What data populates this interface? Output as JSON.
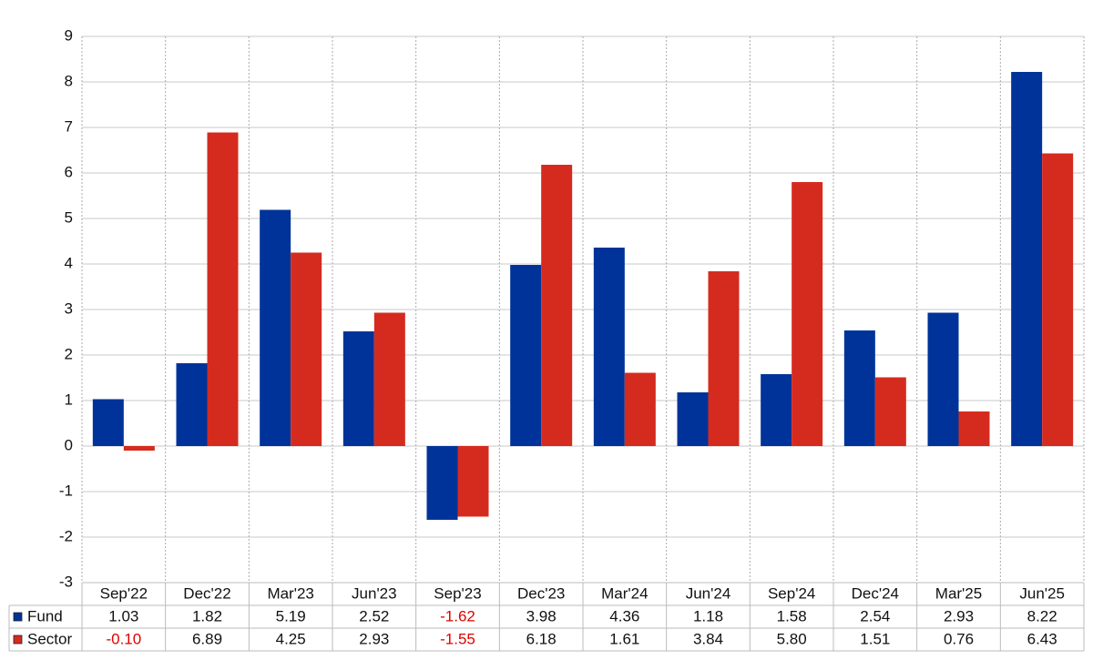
{
  "chart_data": {
    "type": "bar",
    "categories": [
      "Sep'22",
      "Dec'22",
      "Mar'23",
      "Jun'23",
      "Sep'23",
      "Dec'23",
      "Mar'24",
      "Jun'24",
      "Sep'24",
      "Dec'24",
      "Mar'25",
      "Jun'25"
    ],
    "series": [
      {
        "name": "Fund",
        "color": "#003399",
        "values": [
          1.03,
          1.82,
          5.19,
          2.52,
          -1.62,
          3.98,
          4.36,
          1.18,
          1.58,
          2.54,
          2.93,
          8.22
        ],
        "value_labels": [
          "1.03",
          "1.82",
          "5.19",
          "2.52",
          "-1.62",
          "3.98",
          "4.36",
          "1.18",
          "1.58",
          "2.54",
          "2.93",
          "8.22"
        ]
      },
      {
        "name": "Sector",
        "color": "#d52b1e",
        "values": [
          -0.1,
          6.89,
          4.25,
          2.93,
          -1.55,
          6.18,
          1.61,
          3.84,
          5.8,
          1.51,
          0.76,
          6.43
        ],
        "value_labels": [
          "-0.10",
          "6.89",
          "4.25",
          "2.93",
          "-1.55",
          "6.18",
          "1.61",
          "3.84",
          "5.80",
          "1.51",
          "0.76",
          "6.43"
        ]
      }
    ],
    "ylim": [
      -3,
      9
    ],
    "yticks": [
      -3,
      -2,
      -1,
      0,
      1,
      2,
      3,
      4,
      5,
      6,
      7,
      8,
      9
    ],
    "grid": true,
    "negative_label_color": "#e00000"
  }
}
